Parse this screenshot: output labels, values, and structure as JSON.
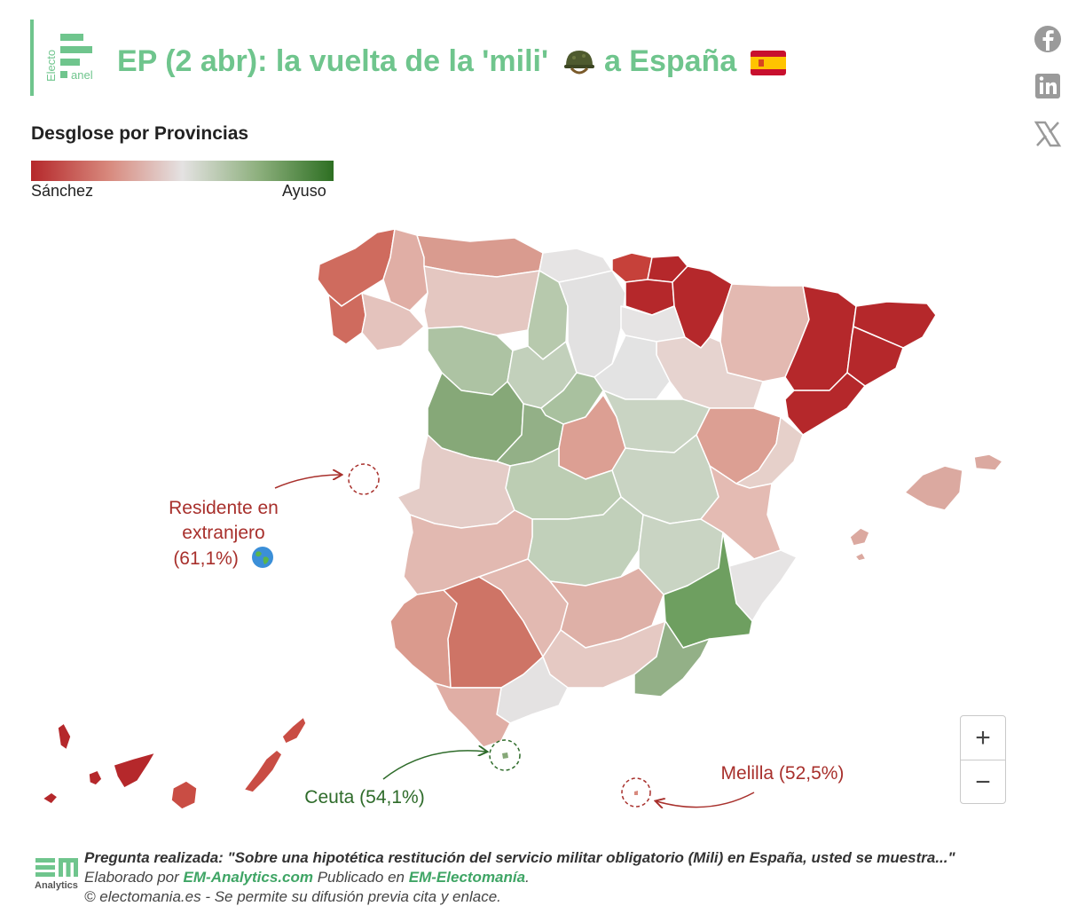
{
  "header": {
    "logo_text_top": "Electo",
    "logo_text_bottom": "anel",
    "title": "EP (2 abr): la vuelta de la 'mili'",
    "title_mid": "a España",
    "icons": [
      "helmet-icon",
      "spain-flag-icon"
    ]
  },
  "share": [
    "facebook-icon",
    "linkedin-icon",
    "x-icon"
  ],
  "subtitle": "Desglose por Provincias",
  "legend": {
    "left": "Sánchez",
    "right": "Ayuso",
    "colors": [
      "#b5282b",
      "#d88a7e",
      "#e4e2e2",
      "#8eb07e",
      "#2d6f22"
    ]
  },
  "annotations": {
    "abroad_line1": "Residente en",
    "abroad_line2": "extranjero",
    "abroad_line3": "(61,1%)",
    "abroad_icon": "globe-icon",
    "ceuta": "Ceuta (54,1%)",
    "melilla": "Melilla (52,5%)"
  },
  "zoom": {
    "in": "+",
    "out": "−"
  },
  "footer": {
    "logo_text": "Analytics",
    "question": "Pregunta realizada: \"Sobre una hipotética restitución del servicio militar obligatorio (Mili) en España, usted se muestra...\"",
    "made_by": "Elaborado por",
    "made_by_link": "EM-Analytics.com",
    "published_in": "Publicado en",
    "published_link": "EM-Electomanía",
    "copyright": "© electomania.es - Se permite su difusión previa cita y enlace."
  }
}
